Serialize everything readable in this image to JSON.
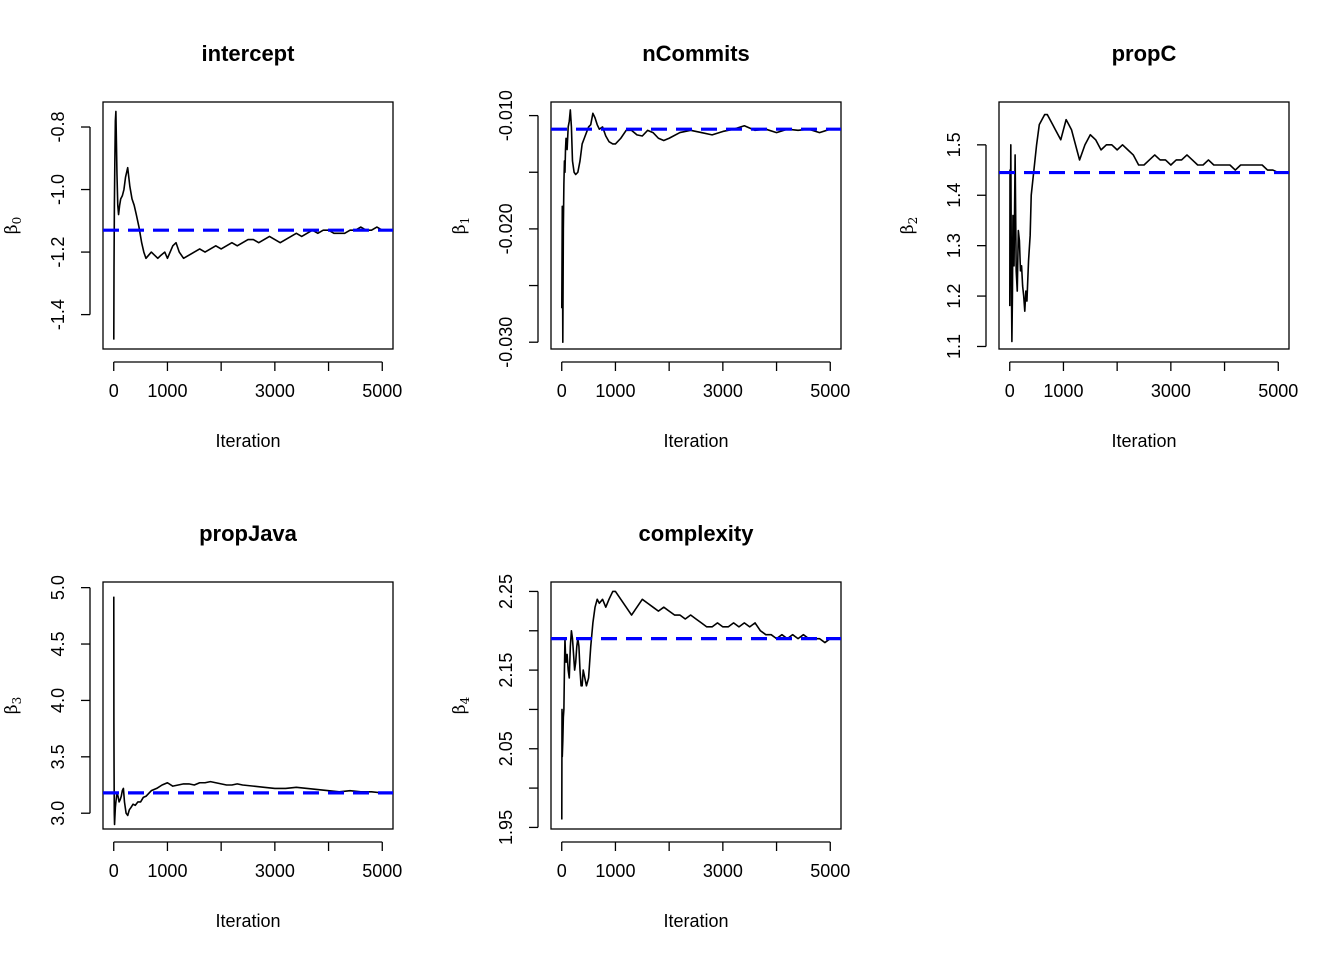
{
  "chart_data": [
    {
      "type": "line",
      "title": "intercept",
      "xlabel": "Iteration",
      "ylabel": "β",
      "ylabel_sub": "0",
      "xlim": [
        -200,
        5200
      ],
      "ylim": [
        -1.51,
        -0.72
      ],
      "xticks": [
        0,
        1000,
        2000,
        3000,
        4000,
        5000
      ],
      "xtick_labels": [
        "0",
        "1000",
        "",
        "3000",
        "",
        "5000"
      ],
      "yticks": [
        -1.4,
        -1.2,
        -1.0,
        -0.8
      ],
      "ytick_labels": [
        "-1.4",
        "-1.2",
        "-1.0",
        "-0.8"
      ],
      "reference_line": -1.13,
      "reference_color": "#0000ff",
      "trace_color": "#000000",
      "series": [
        {
          "x": [
            1,
            5,
            12,
            20,
            30,
            40,
            50,
            60,
            75,
            90,
            110,
            130,
            160,
            190,
            220,
            260,
            300,
            340,
            380,
            420,
            470,
            520,
            560,
            600,
            650,
            700,
            760,
            820,
            880,
            950,
            1000,
            1050,
            1100,
            1160,
            1220,
            1300,
            1400,
            1500,
            1600,
            1700,
            1800,
            1900,
            2000,
            2100,
            2200,
            2300,
            2400,
            2500,
            2600,
            2700,
            2800,
            2900,
            3000,
            3100,
            3200,
            3300,
            3400,
            3500,
            3600,
            3700,
            3800,
            3900,
            4000,
            4100,
            4200,
            4300,
            4400,
            4500,
            4600,
            4700,
            4800,
            4900,
            5000
          ],
          "y": [
            -1.48,
            -1.25,
            -1.05,
            -0.92,
            -0.78,
            -0.75,
            -0.85,
            -0.95,
            -1.05,
            -1.08,
            -1.05,
            -1.03,
            -1.02,
            -1.0,
            -0.96,
            -0.93,
            -0.99,
            -1.03,
            -1.05,
            -1.08,
            -1.12,
            -1.17,
            -1.2,
            -1.22,
            -1.21,
            -1.2,
            -1.21,
            -1.22,
            -1.21,
            -1.2,
            -1.22,
            -1.2,
            -1.18,
            -1.17,
            -1.2,
            -1.22,
            -1.21,
            -1.2,
            -1.19,
            -1.2,
            -1.19,
            -1.18,
            -1.19,
            -1.18,
            -1.17,
            -1.18,
            -1.17,
            -1.16,
            -1.16,
            -1.17,
            -1.16,
            -1.15,
            -1.16,
            -1.17,
            -1.16,
            -1.15,
            -1.14,
            -1.15,
            -1.14,
            -1.13,
            -1.14,
            -1.13,
            -1.13,
            -1.14,
            -1.14,
            -1.14,
            -1.13,
            -1.13,
            -1.12,
            -1.13,
            -1.13,
            -1.12,
            -1.13
          ]
        }
      ]
    },
    {
      "type": "line",
      "title": "nCommits",
      "xlabel": "Iteration",
      "ylabel": "β",
      "ylabel_sub": "1",
      "xlim": [
        -200,
        5200
      ],
      "ylim": [
        -0.0306,
        -0.0088
      ],
      "xticks": [
        0,
        1000,
        2000,
        3000,
        4000,
        5000
      ],
      "xtick_labels": [
        "0",
        "1000",
        "",
        "3000",
        "",
        "5000"
      ],
      "yticks": [
        -0.03,
        -0.025,
        -0.02,
        -0.015,
        -0.01
      ],
      "ytick_labels": [
        "-0.030",
        "",
        "-0.020",
        "",
        "-0.010"
      ],
      "reference_line": -0.0112,
      "reference_color": "#0000ff",
      "trace_color": "#000000",
      "series": [
        {
          "x": [
            1,
            5,
            10,
            20,
            30,
            40,
            50,
            60,
            70,
            80,
            100,
            120,
            140,
            160,
            180,
            200,
            230,
            260,
            300,
            340,
            380,
            420,
            460,
            500,
            540,
            580,
            620,
            660,
            700,
            760,
            820,
            880,
            950,
            1000,
            1100,
            1200,
            1300,
            1400,
            1500,
            1600,
            1700,
            1800,
            1900,
            2000,
            2200,
            2400,
            2600,
            2800,
            3000,
            3200,
            3400,
            3600,
            3800,
            4000,
            4200,
            4400,
            4600,
            4800,
            5000
          ],
          "y": [
            -0.027,
            -0.023,
            -0.018,
            -0.03,
            -0.02,
            -0.016,
            -0.014,
            -0.015,
            -0.013,
            -0.012,
            -0.013,
            -0.011,
            -0.0105,
            -0.0095,
            -0.011,
            -0.014,
            -0.015,
            -0.0152,
            -0.015,
            -0.014,
            -0.0125,
            -0.012,
            -0.0115,
            -0.011,
            -0.0108,
            -0.0098,
            -0.0102,
            -0.0108,
            -0.0112,
            -0.011,
            -0.0118,
            -0.0123,
            -0.0125,
            -0.0125,
            -0.012,
            -0.0113,
            -0.0113,
            -0.0117,
            -0.0118,
            -0.0113,
            -0.0115,
            -0.012,
            -0.0122,
            -0.012,
            -0.0115,
            -0.0113,
            -0.0115,
            -0.0117,
            -0.0114,
            -0.0112,
            -0.0109,
            -0.0113,
            -0.0112,
            -0.0115,
            -0.0112,
            -0.0113,
            -0.0112,
            -0.0115,
            -0.0112
          ]
        }
      ]
    },
    {
      "type": "line",
      "title": "propC",
      "xlabel": "Iteration",
      "ylabel": "β",
      "ylabel_sub": "2",
      "xlim": [
        -200,
        5200
      ],
      "ylim": [
        1.095,
        1.585
      ],
      "xticks": [
        0,
        1000,
        2000,
        3000,
        4000,
        5000
      ],
      "xtick_labels": [
        "0",
        "1000",
        "",
        "3000",
        "",
        "5000"
      ],
      "yticks": [
        1.1,
        1.2,
        1.3,
        1.4,
        1.5
      ],
      "ytick_labels": [
        "1.1",
        "1.2",
        "1.3",
        "1.4",
        "1.5"
      ],
      "reference_line": 1.445,
      "reference_color": "#0000ff",
      "trace_color": "#000000",
      "series": [
        {
          "x": [
            1,
            5,
            10,
            20,
            30,
            40,
            50,
            60,
            80,
            100,
            120,
            140,
            160,
            180,
            200,
            220,
            240,
            260,
            280,
            300,
            320,
            350,
            380,
            400,
            450,
            500,
            550,
            600,
            650,
            700,
            750,
            800,
            850,
            900,
            950,
            1000,
            1050,
            1100,
            1150,
            1200,
            1250,
            1300,
            1400,
            1500,
            1600,
            1700,
            1800,
            1900,
            2000,
            2100,
            2200,
            2300,
            2400,
            2500,
            2600,
            2700,
            2800,
            2900,
            3000,
            3100,
            3200,
            3300,
            3400,
            3500,
            3600,
            3700,
            3800,
            3900,
            4000,
            4100,
            4200,
            4300,
            4400,
            4500,
            4600,
            4700,
            4800,
            4900,
            5000
          ],
          "y": [
            1.18,
            1.45,
            1.32,
            1.5,
            1.24,
            1.11,
            1.2,
            1.36,
            1.26,
            1.48,
            1.25,
            1.21,
            1.33,
            1.31,
            1.25,
            1.26,
            1.22,
            1.2,
            1.17,
            1.21,
            1.19,
            1.27,
            1.32,
            1.4,
            1.45,
            1.5,
            1.54,
            1.55,
            1.56,
            1.56,
            1.55,
            1.54,
            1.53,
            1.52,
            1.51,
            1.53,
            1.55,
            1.54,
            1.53,
            1.51,
            1.49,
            1.47,
            1.5,
            1.52,
            1.51,
            1.49,
            1.5,
            1.5,
            1.49,
            1.5,
            1.49,
            1.48,
            1.46,
            1.46,
            1.47,
            1.48,
            1.47,
            1.47,
            1.46,
            1.47,
            1.47,
            1.48,
            1.47,
            1.46,
            1.46,
            1.47,
            1.46,
            1.46,
            1.46,
            1.46,
            1.45,
            1.46,
            1.46,
            1.46,
            1.46,
            1.46,
            1.45,
            1.45,
            1.445
          ]
        }
      ]
    },
    {
      "type": "line",
      "title": "propJava",
      "xlabel": "Iteration",
      "ylabel": "β",
      "ylabel_sub": "3",
      "xlim": [
        -200,
        5200
      ],
      "ylim": [
        2.86,
        5.05
      ],
      "xticks": [
        0,
        1000,
        2000,
        3000,
        4000,
        5000
      ],
      "xtick_labels": [
        "0",
        "1000",
        "",
        "3000",
        "",
        "5000"
      ],
      "yticks": [
        3.0,
        3.5,
        4.0,
        4.5,
        5.0
      ],
      "ytick_labels": [
        "3.0",
        "3.5",
        "4.0",
        "4.5",
        "5.0"
      ],
      "reference_line": 3.18,
      "reference_color": "#0000ff",
      "trace_color": "#000000",
      "series": [
        {
          "x": [
            1,
            3,
            6,
            10,
            15,
            20,
            30,
            40,
            60,
            80,
            100,
            120,
            140,
            160,
            180,
            200,
            230,
            260,
            290,
            320,
            360,
            400,
            450,
            500,
            550,
            600,
            700,
            800,
            900,
            1000,
            1100,
            1200,
            1300,
            1400,
            1500,
            1600,
            1700,
            1800,
            1900,
            2000,
            2100,
            2200,
            2300,
            2400,
            2600,
            2800,
            3000,
            3200,
            3400,
            3600,
            3800,
            4000,
            4200,
            4400,
            4600,
            4800,
            5000
          ],
          "y": [
            4.92,
            3.8,
            3.4,
            3.0,
            2.9,
            2.95,
            3.05,
            3.1,
            3.18,
            3.15,
            3.1,
            3.12,
            3.15,
            3.2,
            3.22,
            3.1,
            3.0,
            2.98,
            3.03,
            3.05,
            3.08,
            3.07,
            3.1,
            3.1,
            3.14,
            3.15,
            3.2,
            3.22,
            3.25,
            3.27,
            3.24,
            3.25,
            3.26,
            3.26,
            3.25,
            3.27,
            3.27,
            3.28,
            3.27,
            3.26,
            3.25,
            3.25,
            3.26,
            3.25,
            3.24,
            3.23,
            3.22,
            3.22,
            3.23,
            3.22,
            3.21,
            3.2,
            3.19,
            3.2,
            3.19,
            3.19,
            3.18
          ]
        }
      ]
    },
    {
      "type": "line",
      "title": "complexity",
      "xlabel": "Iteration",
      "ylabel": "β",
      "ylabel_sub": "4",
      "xlim": [
        -200,
        5200
      ],
      "ylim": [
        1.948,
        2.262
      ],
      "xticks": [
        0,
        1000,
        2000,
        3000,
        4000,
        5000
      ],
      "xtick_labels": [
        "0",
        "1000",
        "",
        "3000",
        "",
        "5000"
      ],
      "yticks": [
        1.95,
        2.0,
        2.05,
        2.1,
        2.15,
        2.2,
        2.25
      ],
      "ytick_labels": [
        "1.95",
        "",
        "2.05",
        "",
        "2.15",
        "",
        "2.25"
      ],
      "reference_line": 2.19,
      "reference_color": "#0000ff",
      "trace_color": "#000000",
      "series": [
        {
          "x": [
            1,
            5,
            10,
            20,
            30,
            40,
            50,
            60,
            70,
            80,
            100,
            120,
            140,
            160,
            180,
            200,
            220,
            240,
            260,
            280,
            300,
            320,
            340,
            360,
            380,
            400,
            430,
            460,
            500,
            540,
            580,
            620,
            660,
            700,
            760,
            820,
            880,
            950,
            1000,
            1100,
            1200,
            1300,
            1400,
            1500,
            1600,
            1700,
            1800,
            1900,
            2000,
            2100,
            2200,
            2300,
            2400,
            2500,
            2600,
            2700,
            2800,
            2900,
            3000,
            3100,
            3200,
            3300,
            3400,
            3500,
            3600,
            3700,
            3800,
            3900,
            4000,
            4100,
            4200,
            4300,
            4400,
            4500,
            4600,
            4700,
            4800,
            4900,
            5000
          ],
          "y": [
            1.96,
            2.1,
            2.04,
            2.06,
            2.09,
            2.1,
            2.15,
            2.19,
            2.17,
            2.16,
            2.17,
            2.15,
            2.14,
            2.18,
            2.2,
            2.19,
            2.17,
            2.15,
            2.16,
            2.18,
            2.19,
            2.18,
            2.15,
            2.13,
            2.13,
            2.15,
            2.14,
            2.13,
            2.14,
            2.18,
            2.21,
            2.23,
            2.24,
            2.235,
            2.24,
            2.23,
            2.24,
            2.25,
            2.25,
            2.24,
            2.23,
            2.22,
            2.23,
            2.24,
            2.235,
            2.23,
            2.225,
            2.23,
            2.225,
            2.22,
            2.22,
            2.215,
            2.22,
            2.215,
            2.21,
            2.205,
            2.205,
            2.21,
            2.205,
            2.205,
            2.21,
            2.205,
            2.21,
            2.205,
            2.21,
            2.2,
            2.195,
            2.195,
            2.19,
            2.195,
            2.19,
            2.195,
            2.19,
            2.195,
            2.19,
            2.19,
            2.19,
            2.185,
            2.19
          ]
        }
      ]
    }
  ]
}
